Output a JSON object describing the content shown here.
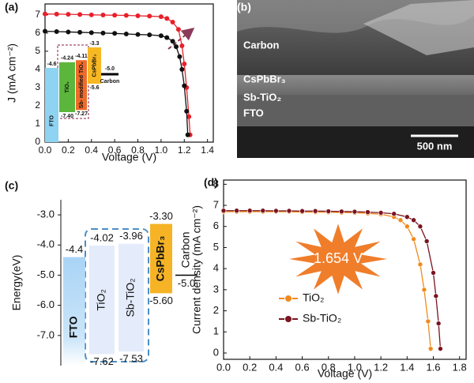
{
  "chart_data": [
    {
      "type": "line",
      "panel_label": "(a)",
      "x_label": "Voltage (V)",
      "y_label": "J (mA cm⁻²)",
      "xlim": [
        0,
        1.45
      ],
      "ylim": [
        0,
        7.6
      ],
      "xticks": [
        {
          "value": 0,
          "label": "0.0"
        },
        0.2,
        0.4,
        0.6,
        0.8,
        {
          "value": 1,
          "label": "1.0"
        },
        1.2,
        1.4
      ],
      "yticks": [
        0,
        1,
        2,
        3,
        4,
        5,
        6,
        7
      ],
      "series": [
        {
          "color": "#e8202a",
          "x": [
            0,
            0.1,
            0.2,
            0.3,
            0.4,
            0.5,
            0.6,
            0.7,
            0.8,
            0.9,
            1.0,
            1.05,
            1.1,
            1.15,
            1.18,
            1.2,
            1.22,
            1.24,
            1.25
          ],
          "values": [
            7.05,
            7.04,
            7.03,
            7.02,
            7.0,
            6.99,
            6.98,
            6.97,
            6.95,
            6.93,
            6.9,
            6.8,
            6.6,
            6.2,
            5.3,
            4.3,
            3.0,
            1.4,
            0.4
          ]
        },
        {
          "color": "#111111",
          "x": [
            0,
            0.1,
            0.2,
            0.3,
            0.4,
            0.5,
            0.6,
            0.7,
            0.8,
            0.9,
            1.0,
            1.05,
            1.1,
            1.13,
            1.16,
            1.18,
            1.2,
            1.22,
            1.23
          ],
          "values": [
            6.1,
            6.08,
            6.06,
            6.04,
            6.02,
            6.0,
            5.98,
            5.95,
            5.92,
            5.9,
            5.85,
            5.75,
            5.55,
            5.25,
            4.7,
            4.0,
            3.1,
            1.7,
            0.4
          ]
        }
      ],
      "inset": {
        "type": "energy-diagram",
        "levels": [
          {
            "name": "FTO",
            "top": -4.6,
            "color": "#8fd3f2"
          },
          {
            "name": "TiO₂",
            "top": -4.24,
            "bottom": -7.4,
            "bottom_label": "-7.40",
            "color": "#5cb63b"
          },
          {
            "name": "Sb- modified TiO₂",
            "top": -4.11,
            "bottom": -7.27,
            "color": "#ef6b2a"
          },
          {
            "name": "CsPbBr₃",
            "top": -3.3,
            "bottom": -5.6,
            "color": "#f7b823"
          },
          {
            "name": "Carbon",
            "top": -5,
            "top_label": "-5.0",
            "style": "line",
            "color": "#000000"
          }
        ]
      }
    },
    {
      "type": "image",
      "panel_label": "(b)",
      "labels": [
        "Carbon",
        "CsPbBr₃",
        "Sb-TiO₂",
        "FTO"
      ],
      "scale_bar": "500 nm"
    },
    {
      "type": "energy-diagram",
      "panel_label": "(c)",
      "y_label": "Energy(eV)",
      "ylim": [
        -8,
        -2.5
      ],
      "yticks": [
        {
          "value": -3,
          "label": "-3.0"
        },
        {
          "value": -4,
          "label": "-4.0"
        },
        {
          "value": -5,
          "label": "-5.0"
        },
        {
          "value": -6,
          "label": "-6.0"
        },
        {
          "value": -7,
          "label": "-7.0"
        }
      ],
      "levels": [
        {
          "name": "FTO",
          "top": -4.4,
          "color": "#a9d4f5"
        },
        {
          "name": "TiO₂",
          "top": -4.02,
          "bottom": -7.62,
          "color": "#e4ecfb"
        },
        {
          "name": "Sb-TiO₂",
          "top": -3.96,
          "bottom": -7.53,
          "color": "#e4ecfb"
        },
        {
          "name": "CsPbBr₃",
          "top": -3.3,
          "top_label": "-3.30",
          "bottom": -5.6,
          "bottom_label": "-5.60",
          "color": "#f5b325"
        },
        {
          "name": "Carbon",
          "top": -5,
          "top_label": "-5.0",
          "style": "line",
          "color": "#000000"
        }
      ]
    },
    {
      "type": "line",
      "panel_label": "(d)",
      "x_label": "Voltage (V)",
      "y_label": "Current density (mA cm⁻²)",
      "xlim": [
        0,
        1.85
      ],
      "ylim": [
        -0.3,
        8.2
      ],
      "xticks": [
        {
          "value": 0,
          "label": "0.0"
        },
        0.2,
        0.4,
        0.6,
        0.8,
        {
          "value": 1,
          "label": "1.0"
        },
        1.2,
        1.4,
        1.6,
        1.8
      ],
      "yticks": [
        0,
        1,
        2,
        3,
        4,
        5,
        6,
        7,
        8
      ],
      "legend": "lower-left",
      "annotation": "1.654 V",
      "series": [
        {
          "name": "TiO₂",
          "color": "#f08a1c",
          "x": [
            0,
            0.1,
            0.2,
            0.3,
            0.4,
            0.5,
            0.6,
            0.7,
            0.8,
            0.9,
            1.0,
            1.1,
            1.2,
            1.3,
            1.35,
            1.4,
            1.45,
            1.5,
            1.53,
            1.56,
            1.58
          ],
          "values": [
            6.7,
            6.7,
            6.7,
            6.7,
            6.7,
            6.7,
            6.68,
            6.68,
            6.67,
            6.66,
            6.65,
            6.62,
            6.58,
            6.45,
            6.3,
            6.0,
            5.4,
            4.2,
            3.0,
            1.5,
            0.2
          ]
        },
        {
          "name": "Sb-TiO₂",
          "color": "#7a1420",
          "x": [
            0,
            0.1,
            0.2,
            0.3,
            0.4,
            0.5,
            0.6,
            0.7,
            0.8,
            0.9,
            1.0,
            1.1,
            1.2,
            1.3,
            1.4,
            1.45,
            1.5,
            1.55,
            1.6,
            1.62,
            1.64,
            1.654
          ],
          "values": [
            6.75,
            6.75,
            6.75,
            6.75,
            6.74,
            6.74,
            6.73,
            6.73,
            6.72,
            6.71,
            6.7,
            6.68,
            6.65,
            6.6,
            6.45,
            6.3,
            6.0,
            5.3,
            3.8,
            2.7,
            1.4,
            0.2
          ]
        }
      ]
    }
  ]
}
